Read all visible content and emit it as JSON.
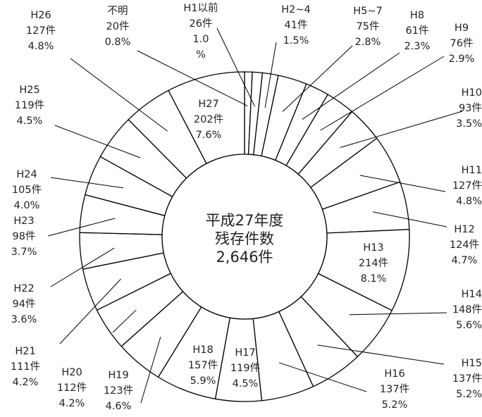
{
  "chart_data": {
    "type": "pie",
    "variant": "donut",
    "center_text": [
      "平成27年度",
      "残存件数",
      "2,646件"
    ],
    "total": 2646,
    "unit": "件",
    "slices": [
      {
        "category": "不明",
        "count": 20,
        "count_label": "20件",
        "percent": 0.8,
        "percent_label": "0.8%"
      },
      {
        "category": "H1以前",
        "count": 26,
        "count_label": "26件",
        "percent": 1.0,
        "percent_label": "1.0",
        "percent_suffix": "%"
      },
      {
        "category": "H2~4",
        "count": 41,
        "count_label": "41件",
        "percent": 1.5,
        "percent_label": "1.5%"
      },
      {
        "category": "H5~7",
        "count": 75,
        "count_label": "75件",
        "percent": 2.8,
        "percent_label": "2.8%"
      },
      {
        "category": "H8",
        "count": 61,
        "count_label": "61件",
        "percent": 2.3,
        "percent_label": "2.3%"
      },
      {
        "category": "H9",
        "count": 76,
        "count_label": "76件",
        "percent": 2.9,
        "percent_label": "2.9%"
      },
      {
        "category": "H10",
        "count": 93,
        "count_label": "93件",
        "percent": 3.5,
        "percent_label": "3.5%"
      },
      {
        "category": "H11",
        "count": 127,
        "count_label": "127件",
        "percent": 4.8,
        "percent_label": "4.8%"
      },
      {
        "category": "H12",
        "count": 124,
        "count_label": "124件",
        "percent": 4.7,
        "percent_label": "4.7%"
      },
      {
        "category": "H13",
        "count": 214,
        "count_label": "214件",
        "percent": 8.1,
        "percent_label": "8.1%"
      },
      {
        "category": "H14",
        "count": 148,
        "count_label": "148件",
        "percent": 5.6,
        "percent_label": "5.6%"
      },
      {
        "category": "H15",
        "count": 137,
        "count_label": "137件",
        "percent": 5.2,
        "percent_label": "5.2%"
      },
      {
        "category": "H16",
        "count": 137,
        "count_label": "137件",
        "percent": 5.2,
        "percent_label": "5.2%"
      },
      {
        "category": "H17",
        "count": 119,
        "count_label": "119件",
        "percent": 4.5,
        "percent_label": "4.5%"
      },
      {
        "category": "H18",
        "count": 157,
        "count_label": "157件",
        "percent": 5.9,
        "percent_label": "5.9%"
      },
      {
        "category": "H19",
        "count": 123,
        "count_label": "123件",
        "percent": 4.6,
        "percent_label": "4.6%"
      },
      {
        "category": "H20",
        "count": 112,
        "count_label": "112件",
        "percent": 4.2,
        "percent_label": "4.2%"
      },
      {
        "category": "H21",
        "count": 111,
        "count_label": "111件",
        "percent": 4.2,
        "percent_label": "4.2%"
      },
      {
        "category": "H22",
        "count": 94,
        "count_label": "94件",
        "percent": 3.6,
        "percent_label": "3.6%"
      },
      {
        "category": "H23",
        "count": 98,
        "count_label": "98件",
        "percent": 3.7,
        "percent_label": "3.7%"
      },
      {
        "category": "H24",
        "count": 105,
        "count_label": "105件",
        "percent": 4.0,
        "percent_label": "4.0%"
      },
      {
        "category": "H25",
        "count": 119,
        "count_label": "119件",
        "percent": 4.5,
        "percent_label": "4.5%"
      },
      {
        "category": "H26",
        "count": 127,
        "count_label": "127件",
        "percent": 4.8,
        "percent_label": "4.8%"
      },
      {
        "category": "H27",
        "count": 202,
        "count_label": "202件",
        "percent": 7.6,
        "percent_label": "7.6%"
      }
    ],
    "colors": {
      "slice_fill": "#ffffff",
      "stroke": "#000000",
      "text": "#222222"
    }
  }
}
